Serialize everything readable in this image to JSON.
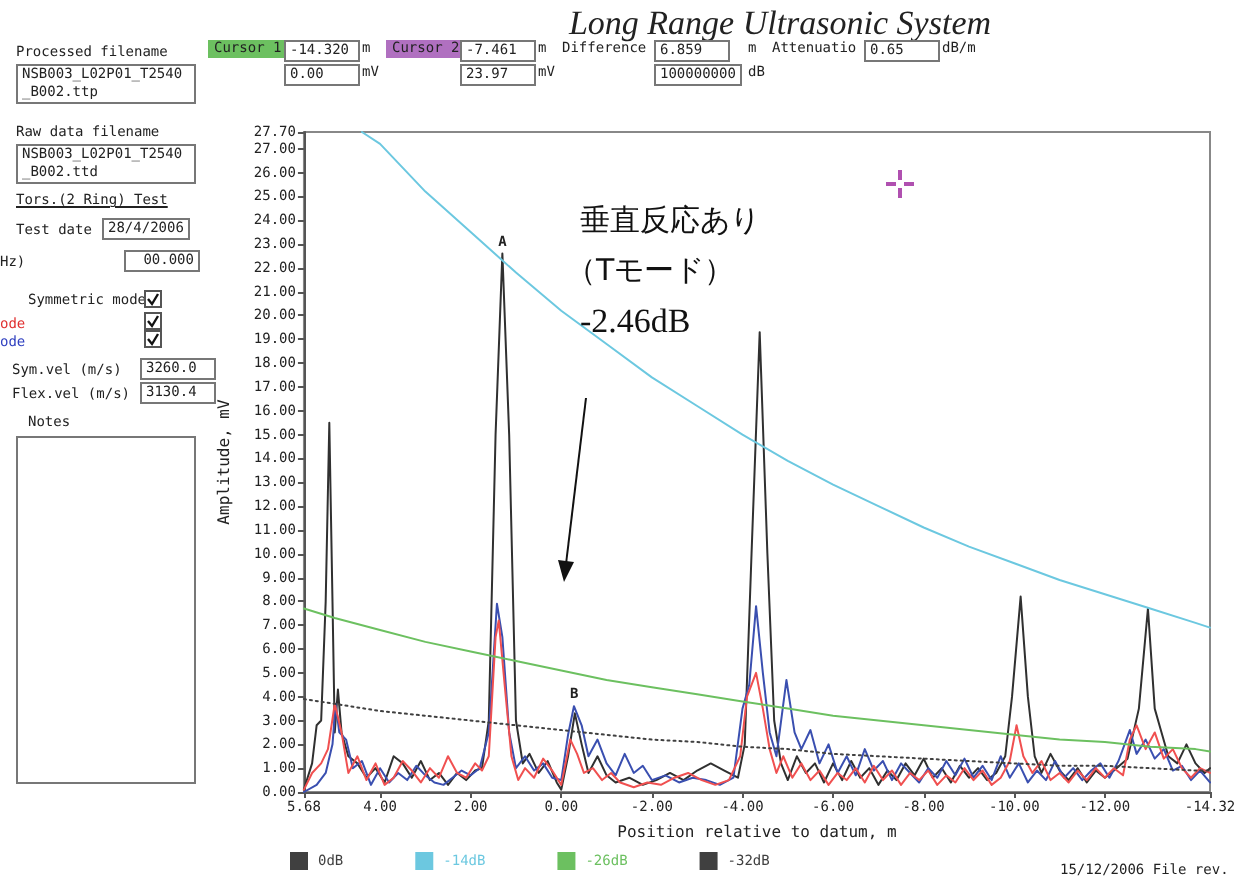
{
  "chart_data": {
    "type": "line",
    "title": "Long Range Ultrasonic System",
    "xlabel": "Position relative to datum, m",
    "ylabel": "Amplitude, mV",
    "xlim": [
      5.68,
      -14.32
    ],
    "xticks": [
      {
        "value": 5.68,
        "label": "5.68"
      },
      {
        "value": 4,
        "label": "4.00"
      },
      {
        "value": 2,
        "label": "2.00"
      },
      {
        "value": 0,
        "label": "0.00"
      },
      {
        "value": -2,
        "label": "-2.00"
      },
      {
        "value": -4,
        "label": "-4.00"
      },
      {
        "value": -6,
        "label": "-6.00"
      },
      {
        "value": -8,
        "label": "-8.00"
      },
      {
        "value": -10,
        "label": "-10.00"
      },
      {
        "value": -12,
        "label": "-12.00"
      },
      {
        "value": -14.32,
        "label": "-14.32"
      }
    ],
    "ylim": [
      0,
      27.7
    ],
    "yticks": [
      {
        "value": 0,
        "label": "0.00"
      },
      {
        "value": 1,
        "label": "1.00"
      },
      {
        "value": 2,
        "label": "2.00"
      },
      {
        "value": 3,
        "label": "3.00"
      },
      {
        "value": 4,
        "label": "4.00"
      },
      {
        "value": 5,
        "label": "5.00"
      },
      {
        "value": 6,
        "label": "6.00"
      },
      {
        "value": 7,
        "label": "7.00"
      },
      {
        "value": 8,
        "label": "8.00"
      },
      {
        "value": 9,
        "label": "9.00"
      },
      {
        "value": 10,
        "label": "10.00"
      },
      {
        "value": 11,
        "label": "11.00"
      },
      {
        "value": 12,
        "label": "12.00"
      },
      {
        "value": 13,
        "label": "13.00"
      },
      {
        "value": 14,
        "label": "14.00"
      },
      {
        "value": 15,
        "label": "15.00"
      },
      {
        "value": 16,
        "label": "16.00"
      },
      {
        "value": 17,
        "label": "17.00"
      },
      {
        "value": 18,
        "label": "18.00"
      },
      {
        "value": 19,
        "label": "19.00"
      },
      {
        "value": 20,
        "label": "20.00"
      },
      {
        "value": 21,
        "label": "21.00"
      },
      {
        "value": 22,
        "label": "22.00"
      },
      {
        "value": 23,
        "label": "23.00"
      },
      {
        "value": 24,
        "label": "24.00"
      },
      {
        "value": 25,
        "label": "25.00"
      },
      {
        "value": 26,
        "label": "26.00"
      },
      {
        "value": 27,
        "label": "27.00"
      },
      {
        "value": 27.7,
        "label": "27.70"
      }
    ],
    "grid": false,
    "legend": "bottom",
    "marker": "none",
    "line_style": "solid",
    "series": [
      {
        "color": "#303030",
        "x": [
          5.68,
          5.6,
          5.5,
          5.4,
          5.3,
          5.2,
          5.12,
          5.05,
          5.0,
          4.93,
          4.85,
          4.7,
          4.5,
          4.3,
          4.1,
          3.9,
          3.7,
          3.5,
          3.3,
          3.1,
          2.9,
          2.7,
          2.5,
          2.3,
          2.1,
          1.9,
          1.75,
          1.6,
          1.45,
          1.3,
          1.15,
          1.0,
          0.85,
          0.7,
          0.5,
          0.3,
          0.1,
          0,
          -0.15,
          -0.3,
          -0.45,
          -0.6,
          -0.8,
          -1.0,
          -1.2,
          -1.5,
          -1.8,
          -2.1,
          -2.4,
          -2.7,
          -3.0,
          -3.3,
          -3.6,
          -3.9,
          -4.05,
          -4.2,
          -4.38,
          -4.55,
          -4.7,
          -4.85,
          -5.0,
          -5.2,
          -5.4,
          -5.6,
          -5.8,
          -6.0,
          -6.2,
          -6.4,
          -6.6,
          -6.8,
          -7.0,
          -7.2,
          -7.4,
          -7.6,
          -7.8,
          -8.0,
          -8.2,
          -8.4,
          -8.6,
          -8.8,
          -9.0,
          -9.2,
          -9.4,
          -9.6,
          -9.8,
          -9.95,
          -10.14,
          -10.3,
          -10.45,
          -10.6,
          -10.8,
          -11.0,
          -11.2,
          -11.4,
          -11.6,
          -11.8,
          -12.0,
          -12.2,
          -12.5,
          -12.75,
          -12.95,
          -13.1,
          -13.25,
          -13.4,
          -13.6,
          -13.8,
          -14.0,
          -14.2,
          -14.32
        ],
        "values": [
          0.1,
          0.6,
          1.2,
          2.8,
          3.0,
          8,
          15.5,
          8,
          2.5,
          4.3,
          2.5,
          1.5,
          1.2,
          0.6,
          1.0,
          0.4,
          1.5,
          1.2,
          0.6,
          1.3,
          0.5,
          0.8,
          0.3,
          0.8,
          0.5,
          0.9,
          1.0,
          3,
          15,
          22.6,
          15,
          3,
          1.2,
          1.6,
          0.8,
          1.3,
          0.4,
          0.1,
          1.5,
          3.3,
          2.0,
          0.8,
          1.5,
          0.7,
          0.4,
          0.6,
          0.3,
          0.5,
          0.8,
          0.5,
          0.9,
          1.2,
          0.9,
          0.6,
          2,
          10,
          19.3,
          10,
          3,
          1.2,
          0.5,
          1.5,
          0.8,
          1.2,
          0.4,
          1.2,
          0.5,
          1.3,
          0.6,
          1.0,
          0.3,
          0.9,
          0.5,
          1.2,
          0.7,
          1.4,
          0.6,
          1.0,
          0.4,
          1.1,
          0.6,
          1.0,
          0.5,
          0.8,
          1.5,
          4,
          8.2,
          4,
          1.5,
          0.8,
          1.6,
          0.9,
          0.5,
          1.0,
          0.4,
          0.9,
          0.6,
          0.9,
          1.4,
          3.5,
          7.7,
          3.5,
          2.5,
          1.5,
          1.2,
          2.0,
          1.2,
          0.8,
          1.0
        ]
      },
      {
        "color": "#3a4fb0",
        "x": [
          5.68,
          5.4,
          5.2,
          5.05,
          4.98,
          4.9,
          4.75,
          4.6,
          4.4,
          4.2,
          4.0,
          3.8,
          3.6,
          3.4,
          3.2,
          3.0,
          2.8,
          2.6,
          2.4,
          2.2,
          2.0,
          1.8,
          1.6,
          1.42,
          1.3,
          1.15,
          1.0,
          0.8,
          0.6,
          0.4,
          0.2,
          0,
          -0.15,
          -0.28,
          -0.45,
          -0.6,
          -0.8,
          -1.0,
          -1.2,
          -1.4,
          -1.6,
          -1.8,
          -2.0,
          -2.3,
          -2.6,
          -2.9,
          -3.2,
          -3.5,
          -3.8,
          -4.0,
          -4.15,
          -4.3,
          -4.45,
          -4.6,
          -4.75,
          -4.97,
          -5.15,
          -5.3,
          -5.5,
          -5.7,
          -5.9,
          -6.1,
          -6.3,
          -6.5,
          -6.7,
          -6.9,
          -7.1,
          -7.3,
          -7.5,
          -7.7,
          -7.9,
          -8.1,
          -8.3,
          -8.5,
          -8.7,
          -8.9,
          -9.1,
          -9.3,
          -9.5,
          -9.7,
          -9.9,
          -10.1,
          -10.3,
          -10.5,
          -10.7,
          -10.9,
          -11.1,
          -11.3,
          -11.5,
          -11.7,
          -11.9,
          -12.1,
          -12.3,
          -12.55,
          -12.7,
          -12.9,
          -13.1,
          -13.3,
          -13.5,
          -13.7,
          -13.9,
          -14.1,
          -14.32
        ],
        "values": [
          0,
          0.3,
          0.8,
          2.0,
          3.7,
          2.5,
          2.2,
          1.0,
          1.3,
          0.3,
          1.0,
          0.4,
          0.8,
          0.5,
          1.1,
          0.7,
          0.4,
          0.3,
          0.6,
          0.9,
          0.7,
          1.0,
          2.5,
          7.9,
          6.5,
          2.5,
          1.0,
          1.5,
          0.9,
          1.2,
          0.6,
          0.5,
          2.4,
          3.6,
          2.8,
          1.5,
          2.2,
          1.2,
          0.7,
          1.6,
          0.8,
          1.1,
          0.5,
          0.7,
          0.4,
          0.6,
          0.5,
          0.3,
          0.6,
          3.5,
          4.5,
          7.8,
          5,
          2.5,
          1.5,
          4.7,
          2.5,
          1.8,
          2.6,
          1.2,
          2.0,
          0.8,
          1.5,
          0.7,
          1.8,
          0.9,
          1.3,
          0.5,
          1.2,
          0.8,
          0.4,
          1.0,
          0.6,
          1.3,
          0.7,
          1.4,
          0.6,
          1.1,
          0.5,
          1.5,
          0.6,
          1.2,
          0.4,
          0.9,
          0.5,
          1.3,
          0.6,
          1.0,
          0.5,
          0.9,
          1.2,
          0.6,
          1.3,
          2.6,
          1.6,
          2.2,
          1.4,
          1.8,
          0.9,
          1.1,
          0.5,
          0.9,
          0.4
        ]
      },
      {
        "color": "#f05050",
        "x": [
          5.68,
          5.5,
          5.3,
          5.15,
          5.0,
          4.85,
          4.7,
          4.5,
          4.3,
          4.1,
          3.9,
          3.7,
          3.5,
          3.3,
          3.1,
          2.9,
          2.7,
          2.5,
          2.3,
          2.1,
          1.9,
          1.75,
          1.6,
          1.45,
          1.38,
          1.25,
          1.1,
          0.95,
          0.8,
          0.6,
          0.4,
          0.2,
          0,
          -0.2,
          -0.35,
          -0.5,
          -0.7,
          -0.9,
          -1.1,
          -1.3,
          -1.6,
          -1.9,
          -2.2,
          -2.5,
          -2.8,
          -3.1,
          -3.4,
          -3.7,
          -3.95,
          -4.1,
          -4.3,
          -4.45,
          -4.6,
          -4.75,
          -4.9,
          -5.1,
          -5.3,
          -5.5,
          -5.7,
          -5.9,
          -6.1,
          -6.3,
          -6.5,
          -6.7,
          -6.9,
          -7.1,
          -7.3,
          -7.5,
          -7.7,
          -7.9,
          -8.1,
          -8.3,
          -8.5,
          -8.7,
          -8.9,
          -9.1,
          -9.3,
          -9.5,
          -9.7,
          -9.9,
          -10.05,
          -10.2,
          -10.4,
          -10.6,
          -10.8,
          -11.0,
          -11.2,
          -11.4,
          -11.6,
          -11.8,
          -12.0,
          -12.2,
          -12.4,
          -12.55,
          -12.7,
          -12.9,
          -13.1,
          -13.3,
          -13.5,
          -13.7,
          -13.9,
          -14.1,
          -14.32
        ],
        "values": [
          0.1,
          0.8,
          1.2,
          1.8,
          3.7,
          2.5,
          0.8,
          1.5,
          0.5,
          1.2,
          0.3,
          0.6,
          1.3,
          0.9,
          0.4,
          1.0,
          0.6,
          1.5,
          0.8,
          0.6,
          1.2,
          0.9,
          1.5,
          6.5,
          7.2,
          4.5,
          1.5,
          0.5,
          1.0,
          0.6,
          1.4,
          0.9,
          0.3,
          2.2,
          1.6,
          0.8,
          1.0,
          0.5,
          0.8,
          0.4,
          0.2,
          0.4,
          0.3,
          0.6,
          0.8,
          0.5,
          0.3,
          0.5,
          1.5,
          4.0,
          5.0,
          3.5,
          1.8,
          0.8,
          1.5,
          0.6,
          1.2,
          0.5,
          0.9,
          0.3,
          0.8,
          0.5,
          1.0,
          0.4,
          1.1,
          0.5,
          0.9,
          0.3,
          0.8,
          0.5,
          0.9,
          0.3,
          0.7,
          0.4,
          1.0,
          0.5,
          0.9,
          0.3,
          0.6,
          1.3,
          2.8,
          1.5,
          0.8,
          1.3,
          0.5,
          0.8,
          0.4,
          0.9,
          0.5,
          1.0,
          0.6,
          1.0,
          0.7,
          2.2,
          2.8,
          1.8,
          2.5,
          1.4,
          1.8,
          1.0,
          0.6,
          1.0,
          0.8
        ]
      },
      {
        "name": "0dB",
        "color": "#404040"
      },
      {
        "name": "-14dB",
        "color": "#6cc8e0",
        "x": [
          4.4,
          4,
          3,
          2,
          1,
          0,
          -1,
          -2,
          -3,
          -4,
          -5,
          -6,
          -7,
          -8,
          -9,
          -10,
          -11,
          -12,
          -13,
          -14,
          -14.32
        ],
        "values": [
          27.7,
          27.2,
          25.2,
          23.5,
          21.8,
          20.2,
          18.8,
          17.4,
          16.2,
          15.0,
          13.9,
          12.9,
          12.0,
          11.1,
          10.3,
          9.6,
          8.9,
          8.3,
          7.7,
          7.1,
          6.9
        ]
      },
      {
        "name": "-26dB",
        "color": "#6cc060",
        "x": [
          5.68,
          5,
          4,
          3,
          2,
          1,
          0,
          -1,
          -2,
          -3,
          -4,
          -5,
          -6,
          -7,
          -8,
          -9,
          -10,
          -11,
          -12,
          -13,
          -14,
          -14.32
        ],
        "values": [
          7.7,
          7.3,
          6.8,
          6.3,
          5.9,
          5.5,
          5.1,
          4.7,
          4.4,
          4.1,
          3.8,
          3.5,
          3.2,
          3.0,
          2.8,
          2.6,
          2.4,
          2.2,
          2.1,
          1.9,
          1.8,
          1.7
        ]
      },
      {
        "name": "-32dB",
        "color": "#404040",
        "line_style": "dotted",
        "x": [
          5.68,
          5,
          4,
          3,
          2,
          1,
          0,
          -1,
          -2,
          -3,
          -4,
          -5,
          -6,
          -7,
          -8,
          -9,
          -10,
          -11,
          -12,
          -13,
          -14,
          -14.32
        ],
        "values": [
          3.9,
          3.7,
          3.4,
          3.2,
          3.0,
          2.8,
          2.6,
          2.4,
          2.2,
          2.1,
          1.9,
          1.8,
          1.6,
          1.5,
          1.4,
          1.3,
          1.2,
          1.1,
          1.1,
          1.0,
          0.9,
          0.9
        ]
      }
    ],
    "annotations": [
      {
        "text": "A",
        "x": 1.3,
        "y": 22.6
      },
      {
        "text": "B",
        "x": -0.28,
        "y": 3.6
      },
      "垂直反応あり",
      "（Tモード）",
      "-2.46dB",
      "Processed filename",
      "NSB003_L02P01_T2540_B002.ttp",
      "Cursor 1",
      "-14.320",
      "m",
      "Cursor 2",
      "-7.461",
      "m",
      "Difference",
      "6.859",
      "m",
      "Attenuatio",
      "0.65",
      "dB/m",
      "0.00",
      "mV",
      "23.97",
      "mV",
      "100000000",
      "dB",
      "Raw data filename",
      "NSB003_L02P01_T2540_B002.ttd",
      "Tors.(2 Ring) Test",
      "Test date",
      "28/4/2006",
      "Hz)",
      "00.000",
      "Symmetric mode",
      "ode",
      "ode",
      "Sym.vel (m/s)",
      "3260.0",
      "Flex.vel (m/s)",
      "3130.4",
      "Notes",
      "15/12/2006  File rev."
    ]
  }
}
